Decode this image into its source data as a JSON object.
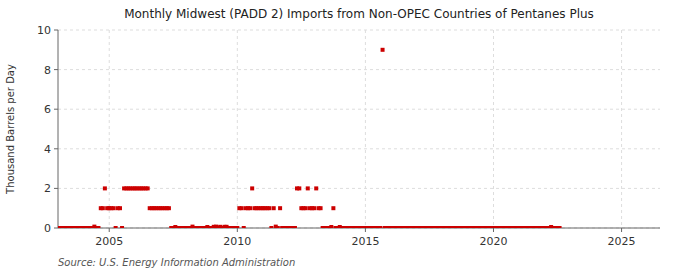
{
  "chart_data": {
    "type": "scatter",
    "title": "Monthly Midwest (PADD 2) Imports from Non-OPEC Countries of Pentanes Plus",
    "ylabel": "Thousand Barrels per Day",
    "source": "Source: U.S. Energy Information Administration",
    "color": "#cc0000",
    "marker": "square",
    "grid": true,
    "xlim": [
      2003.0,
      2026.5
    ],
    "ylim": [
      0,
      10
    ],
    "xticks": [
      2005,
      2010,
      2015,
      2020,
      2025
    ],
    "yticks": [
      0,
      2,
      4,
      6,
      8,
      10
    ],
    "x": [
      2003.0,
      2003.08,
      2003.17,
      2003.25,
      2003.33,
      2003.42,
      2003.5,
      2003.58,
      2003.67,
      2003.75,
      2003.83,
      2003.92,
      2004.0,
      2004.08,
      2004.17,
      2004.25,
      2004.33,
      2004.42,
      2004.5,
      2004.58,
      2004.67,
      2004.75,
      2004.83,
      2004.92,
      2005.0,
      2005.08,
      2005.17,
      2005.25,
      2005.33,
      2005.42,
      2005.5,
      2005.58,
      2005.67,
      2005.75,
      2005.83,
      2005.92,
      2006.0,
      2006.08,
      2006.17,
      2006.25,
      2006.33,
      2006.42,
      2006.5,
      2006.58,
      2006.67,
      2006.75,
      2006.83,
      2006.92,
      2007.0,
      2007.08,
      2007.17,
      2007.25,
      2007.33,
      2007.42,
      2007.5,
      2007.58,
      2007.67,
      2007.75,
      2007.83,
      2007.92,
      2008.0,
      2008.08,
      2008.17,
      2008.25,
      2008.33,
      2008.42,
      2008.5,
      2008.58,
      2008.67,
      2008.75,
      2008.83,
      2008.92,
      2009.0,
      2009.08,
      2009.17,
      2009.25,
      2009.33,
      2009.42,
      2009.5,
      2009.58,
      2009.67,
      2009.75,
      2009.83,
      2009.92,
      2010.0,
      2010.08,
      2010.17,
      2010.25,
      2010.33,
      2010.42,
      2010.5,
      2010.58,
      2010.67,
      2010.75,
      2010.83,
      2010.92,
      2011.0,
      2011.08,
      2011.17,
      2011.25,
      2011.33,
      2011.42,
      2011.5,
      2011.58,
      2011.67,
      2011.75,
      2011.83,
      2011.92,
      2012.0,
      2012.08,
      2012.17,
      2012.25,
      2012.33,
      2012.42,
      2012.5,
      2012.58,
      2012.67,
      2012.75,
      2012.83,
      2012.92,
      2013.0,
      2013.08,
      2013.17,
      2013.25,
      2013.33,
      2013.42,
      2013.5,
      2013.58,
      2013.67,
      2013.75,
      2013.83,
      2013.92,
      2014.0,
      2014.08,
      2014.17,
      2014.25,
      2014.33,
      2014.42,
      2014.5,
      2014.58,
      2014.67,
      2014.75,
      2014.83,
      2014.92,
      2015.0,
      2015.08,
      2015.17,
      2015.25,
      2015.33,
      2015.42,
      2015.5,
      2015.58,
      2015.67,
      2015.75,
      2015.83,
      2015.92,
      2016.0,
      2016.08,
      2016.17,
      2016.25,
      2016.33,
      2016.42,
      2016.5,
      2016.58,
      2016.67,
      2016.75,
      2016.83,
      2016.92,
      2017.0,
      2017.08,
      2017.17,
      2017.25,
      2017.33,
      2017.42,
      2017.5,
      2017.58,
      2017.67,
      2017.75,
      2017.83,
      2017.92,
      2018.0,
      2018.08,
      2018.17,
      2018.25,
      2018.33,
      2018.42,
      2018.5,
      2018.58,
      2018.67,
      2018.75,
      2018.83,
      2018.92,
      2019.0,
      2019.08,
      2019.17,
      2019.25,
      2019.33,
      2019.42,
      2019.5,
      2019.58,
      2019.67,
      2019.75,
      2019.83,
      2019.92,
      2020.0,
      2020.08,
      2020.17,
      2020.25,
      2020.33,
      2020.42,
      2020.5,
      2020.58,
      2020.67,
      2020.75,
      2020.83,
      2020.92,
      2021.0,
      2021.08,
      2021.17,
      2021.25,
      2021.33,
      2021.42,
      2021.5,
      2021.58,
      2021.67,
      2021.75,
      2021.83,
      2021.92,
      2022.0,
      2022.08,
      2022.17,
      2022.25,
      2022.33,
      2022.42,
      2022.5,
      2022.58
    ],
    "values": [
      0.0,
      0.0,
      0.0,
      0.0,
      0.0,
      0.0,
      0.0,
      0.0,
      0.0,
      0.0,
      0.0,
      0.0,
      0.0,
      0.0,
      0.0,
      0.0,
      0.0,
      0.07,
      0.0,
      0.0,
      1.0,
      1.0,
      2.0,
      1.0,
      1.0,
      1.0,
      1.0,
      0.0,
      1.0,
      1.0,
      0.0,
      2.0,
      2.0,
      2.0,
      2.0,
      2.0,
      2.0,
      2.0,
      2.0,
      2.0,
      2.0,
      2.0,
      2.0,
      1.0,
      1.0,
      1.0,
      1.0,
      1.0,
      1.0,
      1.0,
      1.0,
      1.0,
      1.0,
      0.0,
      0.0,
      0.05,
      0.0,
      0.0,
      0.0,
      0.0,
      0.0,
      0.0,
      0.0,
      0.07,
      0.0,
      0.0,
      0.0,
      0.0,
      0.0,
      0.0,
      0.05,
      0.0,
      0.0,
      0.06,
      0.07,
      0.0,
      0.06,
      0.0,
      0.06,
      0.06,
      0.0,
      0.0,
      0.0,
      0.0,
      0.0,
      1.0,
      1.0,
      0.0,
      1.0,
      1.0,
      1.0,
      2.0,
      1.0,
      1.0,
      1.0,
      1.0,
      1.0,
      1.0,
      1.0,
      1.0,
      0.0,
      1.0,
      0.07,
      0.0,
      1.0,
      0.0,
      0.0,
      0.0,
      0.0,
      0.0,
      0.0,
      0.0,
      2.0,
      2.0,
      1.0,
      1.0,
      1.0,
      2.0,
      1.0,
      1.0,
      1.0,
      2.0,
      1.0,
      1.0,
      0.0,
      0.0,
      0.0,
      0.0,
      0.05,
      1.0,
      0.0,
      0.0,
      0.05,
      0.0,
      0.0,
      0.0,
      0.0,
      0.0,
      0.0,
      0.0,
      0.0,
      0.0,
      0.0,
      0.0,
      0.0,
      0.0,
      0.0,
      0.0,
      0.0,
      0.0,
      0.0,
      0.0,
      9.0,
      0.0,
      0.0,
      0.0,
      0.0,
      0.0,
      0.0,
      0.0,
      0.0,
      0.0,
      0.0,
      0.0,
      0.0,
      0.0,
      0.0,
      0.0,
      0.0,
      0.0,
      0.0,
      0.0,
      0.0,
      0.0,
      0.0,
      0.0,
      0.0,
      0.0,
      0.0,
      0.0,
      0.0,
      0.0,
      0.0,
      0.0,
      0.0,
      0.0,
      0.0,
      0.0,
      0.0,
      0.0,
      0.0,
      0.0,
      0.0,
      0.0,
      0.0,
      0.0,
      0.0,
      0.0,
      0.0,
      0.0,
      0.0,
      0.0,
      0.0,
      0.0,
      0.0,
      0.0,
      0.0,
      0.0,
      0.0,
      0.0,
      0.0,
      0.0,
      0.0,
      0.0,
      0.0,
      0.0,
      0.0,
      0.0,
      0.0,
      0.0,
      0.0,
      0.0,
      0.0,
      0.0,
      0.0,
      0.0,
      0.0,
      0.0,
      0.0,
      0.0,
      0.0,
      0.05,
      0.0,
      0.0,
      0.0,
      0.0
    ]
  }
}
